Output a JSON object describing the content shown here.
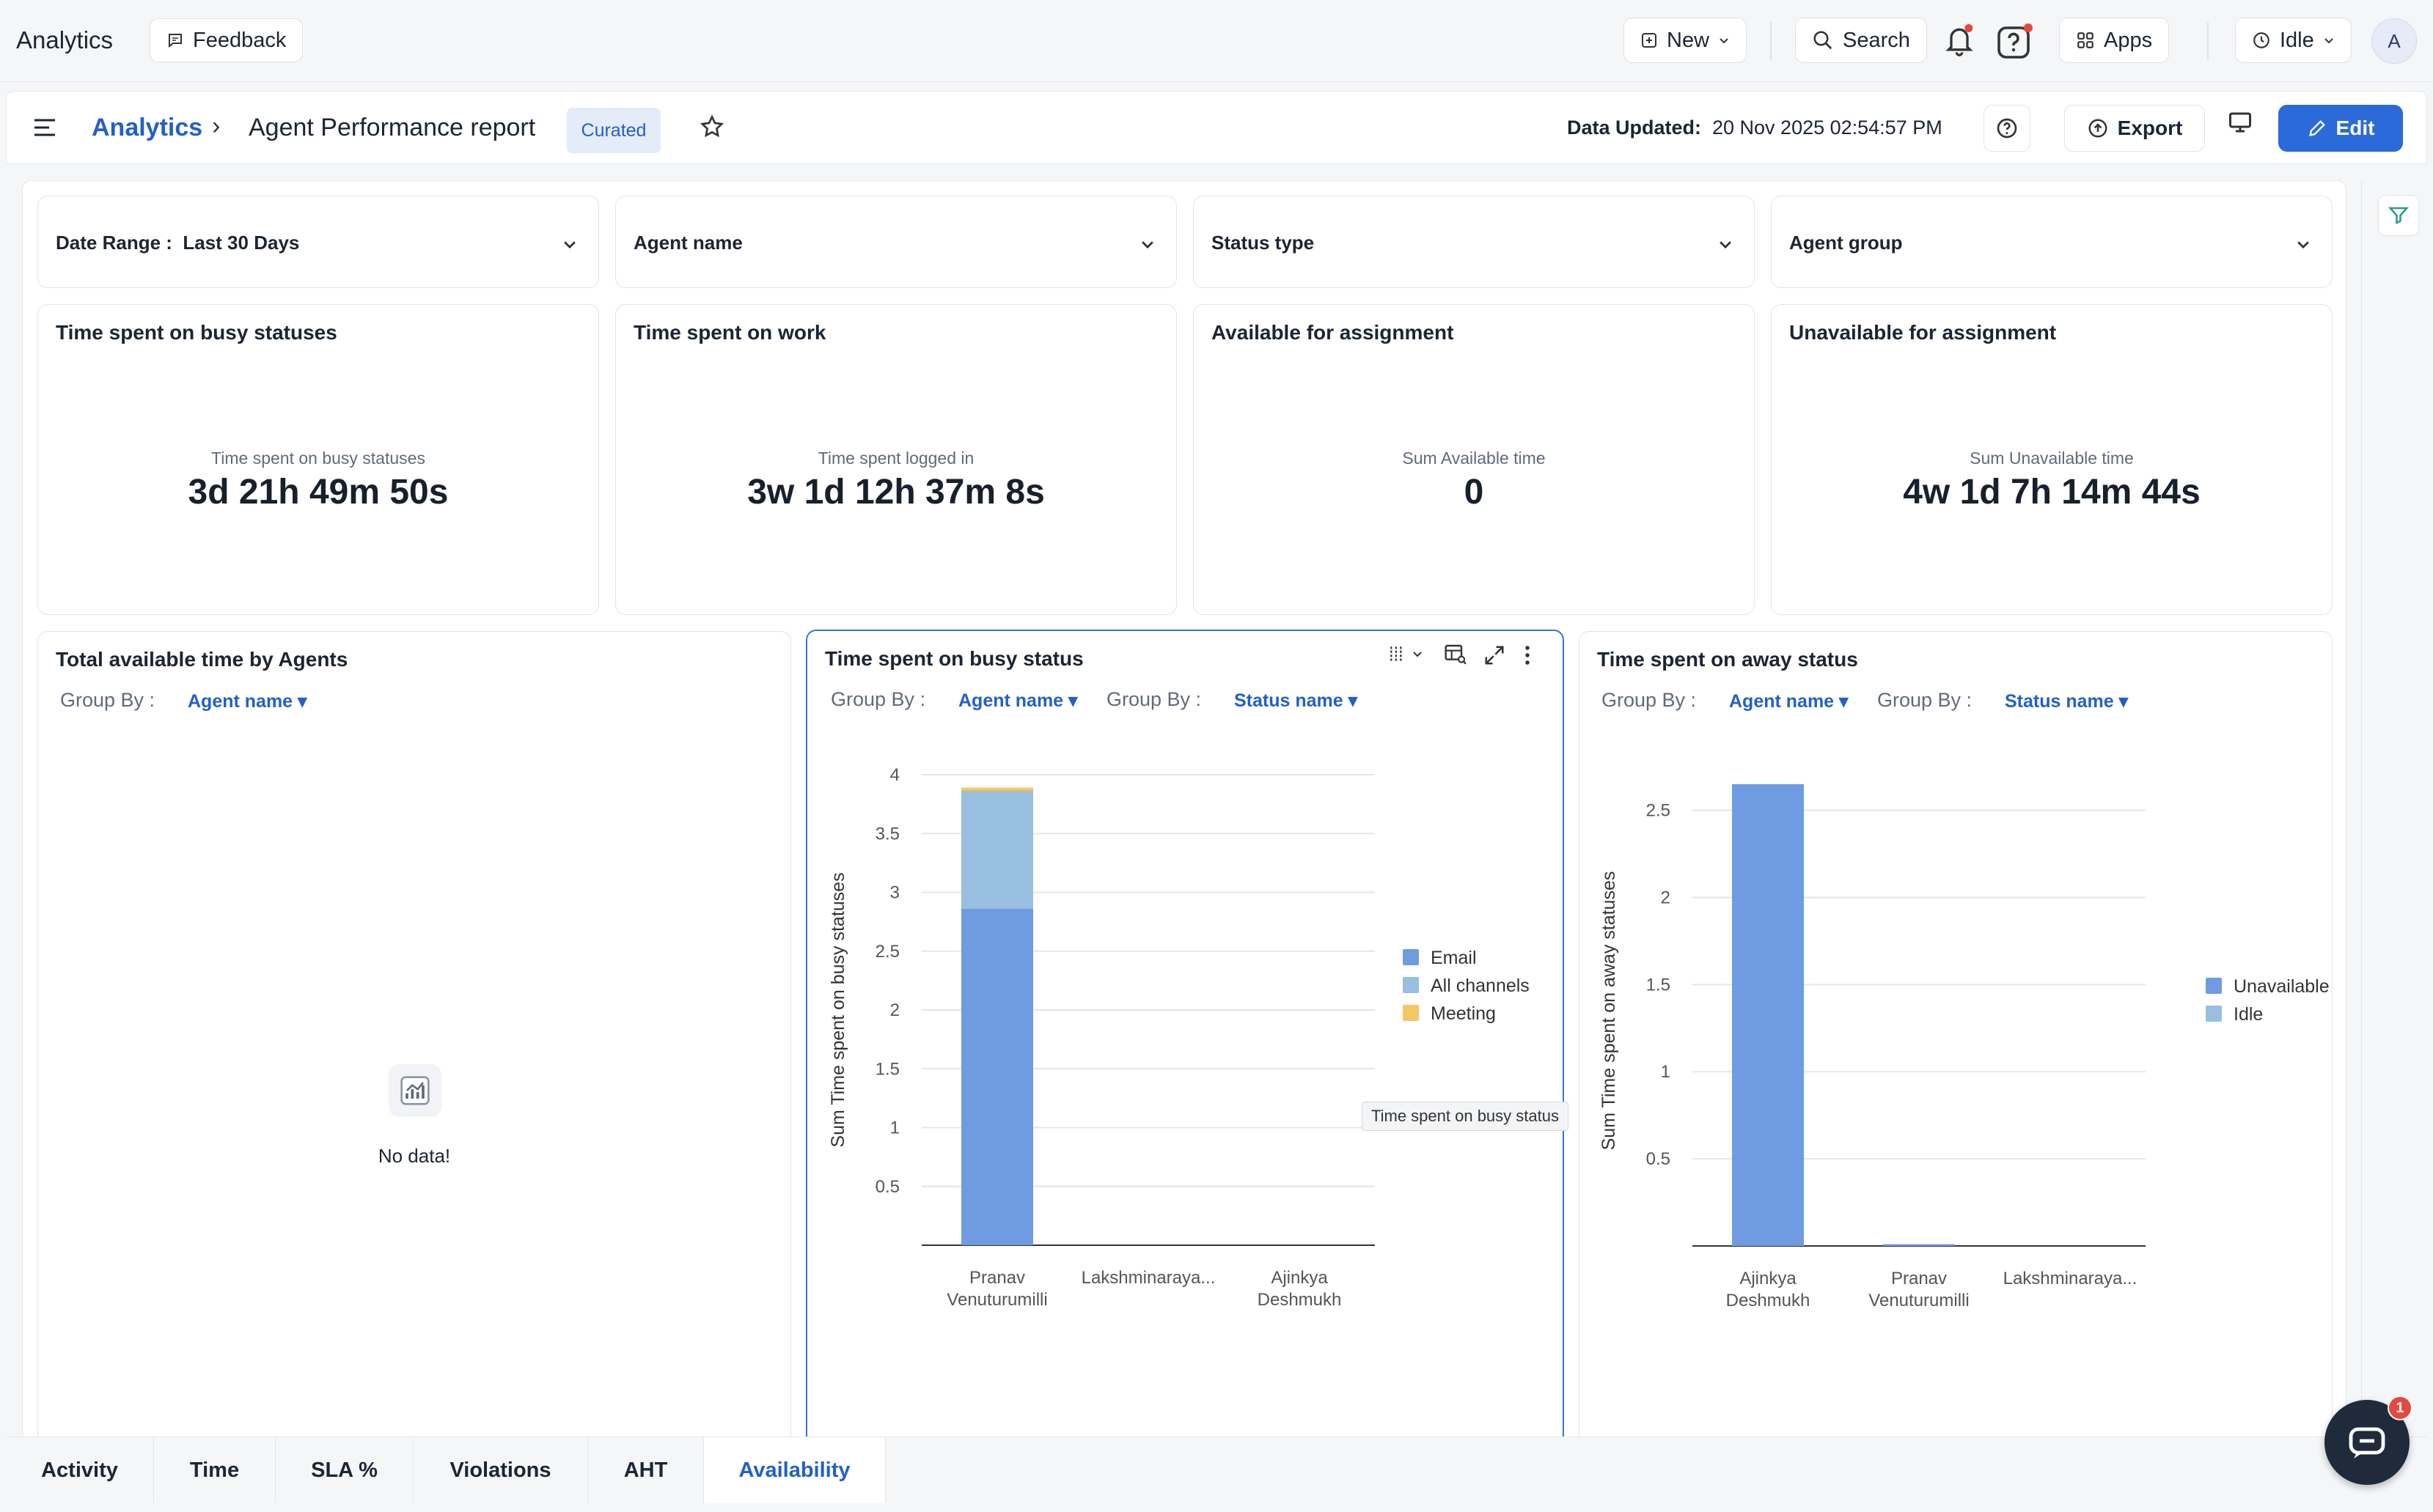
{
  "app": {
    "title": "Analytics",
    "feedback_label": "Feedback"
  },
  "topbar": {
    "new_label": "New",
    "search_label": "Search",
    "apps_label": "Apps",
    "status_label": "Idle",
    "avatar_initial": "A"
  },
  "subbar": {
    "breadcrumb_root": "Analytics",
    "breadcrumb_sep": "›",
    "report_title": "Agent Performance report",
    "curated_badge": "Curated",
    "data_updated_label": "Data Updated:",
    "data_updated_value": "20 Nov 2025 02:54:57 PM",
    "export_label": "Export",
    "edit_label": "Edit"
  },
  "filters": [
    {
      "label": "Date Range :",
      "value": "Last 30 Days"
    },
    {
      "label": "Agent name",
      "value": ""
    },
    {
      "label": "Status type",
      "value": ""
    },
    {
      "label": "Agent group",
      "value": ""
    }
  ],
  "kpis": [
    {
      "title": "Time spent on busy statuses",
      "subtitle": "Time spent on busy statuses",
      "value": "3d 21h 49m 50s"
    },
    {
      "title": "Time spent on work",
      "subtitle": "Time spent logged in",
      "value": "3w 1d 12h 37m 8s"
    },
    {
      "title": "Available for assignment",
      "subtitle": "Sum Available time",
      "value": "0"
    },
    {
      "title": "Unavailable for assignment",
      "subtitle": "Sum Unavailable time",
      "value": "4w 1d 7h 14m 44s"
    }
  ],
  "charts": {
    "available": {
      "title": "Total available time by Agents",
      "group_by_label": "Group By :",
      "group_by_value": "Agent name",
      "empty_text": "No data!"
    },
    "busy": {
      "title": "Time spent on busy status",
      "group_by_label": "Group By :",
      "group_by_value": "Agent name",
      "group_by2_label": "Group By :",
      "group_by2_value": "Status name",
      "tooltip": "Time spent on busy status"
    },
    "away": {
      "title": "Time spent on away status",
      "group_by_label": "Group By :",
      "group_by_value": "Agent name",
      "group_by2_label": "Group By :",
      "group_by2_value": "Status name"
    }
  },
  "chart_data": [
    {
      "type": "bar",
      "stacked": true,
      "title": "Time spent on busy status",
      "ylabel": "Sum Time spent on busy statuses",
      "ylim": [
        0,
        4
      ],
      "yticks": [
        "0.5",
        "1",
        "1.5",
        "2",
        "2.5",
        "3",
        "3.5",
        "4"
      ],
      "categories": [
        [
          "Pranav",
          "Venuturumilli"
        ],
        [
          "Lakshminaraya..."
        ],
        [
          "Ajinkya",
          "Deshmukh"
        ]
      ],
      "series": [
        {
          "name": "Email",
          "color": "#6f9be3",
          "values": [
            2.86,
            0,
            0
          ]
        },
        {
          "name": "All channels",
          "color": "#98bee0",
          "values": [
            1.0,
            0,
            0
          ]
        },
        {
          "name": "",
          "color": "#e8b34f",
          "values": [
            0.01,
            0,
            0
          ]
        },
        {
          "name": "Meeting",
          "color": "#f2c866",
          "values": [
            0.02,
            0,
            0
          ]
        }
      ],
      "legend": "right",
      "grid": true
    },
    {
      "type": "bar",
      "stacked": true,
      "title": "Time spent on away status",
      "ylabel": "Sum Time spent on away statuses",
      "ylim": [
        0,
        2.7
      ],
      "yticks": [
        "0.5",
        "1",
        "1.5",
        "2",
        "2.5"
      ],
      "categories": [
        [
          "Ajinkya",
          "Deshmukh"
        ],
        [
          "Pranav",
          "Venuturumilli"
        ],
        [
          "Lakshminaraya..."
        ]
      ],
      "series": [
        {
          "name": "Unavailable",
          "color": "#6f9be3",
          "values": [
            2.65,
            0.01,
            0
          ]
        },
        {
          "name": "Idle",
          "color": "#98bee0",
          "values": [
            0,
            0,
            0
          ]
        }
      ],
      "legend": "right",
      "grid": true
    }
  ],
  "tabs": [
    "Activity",
    "Time",
    "SLA %",
    "Violations",
    "AHT",
    "Availability"
  ],
  "active_tab": "Availability",
  "chat": {
    "badge_count": "1"
  }
}
